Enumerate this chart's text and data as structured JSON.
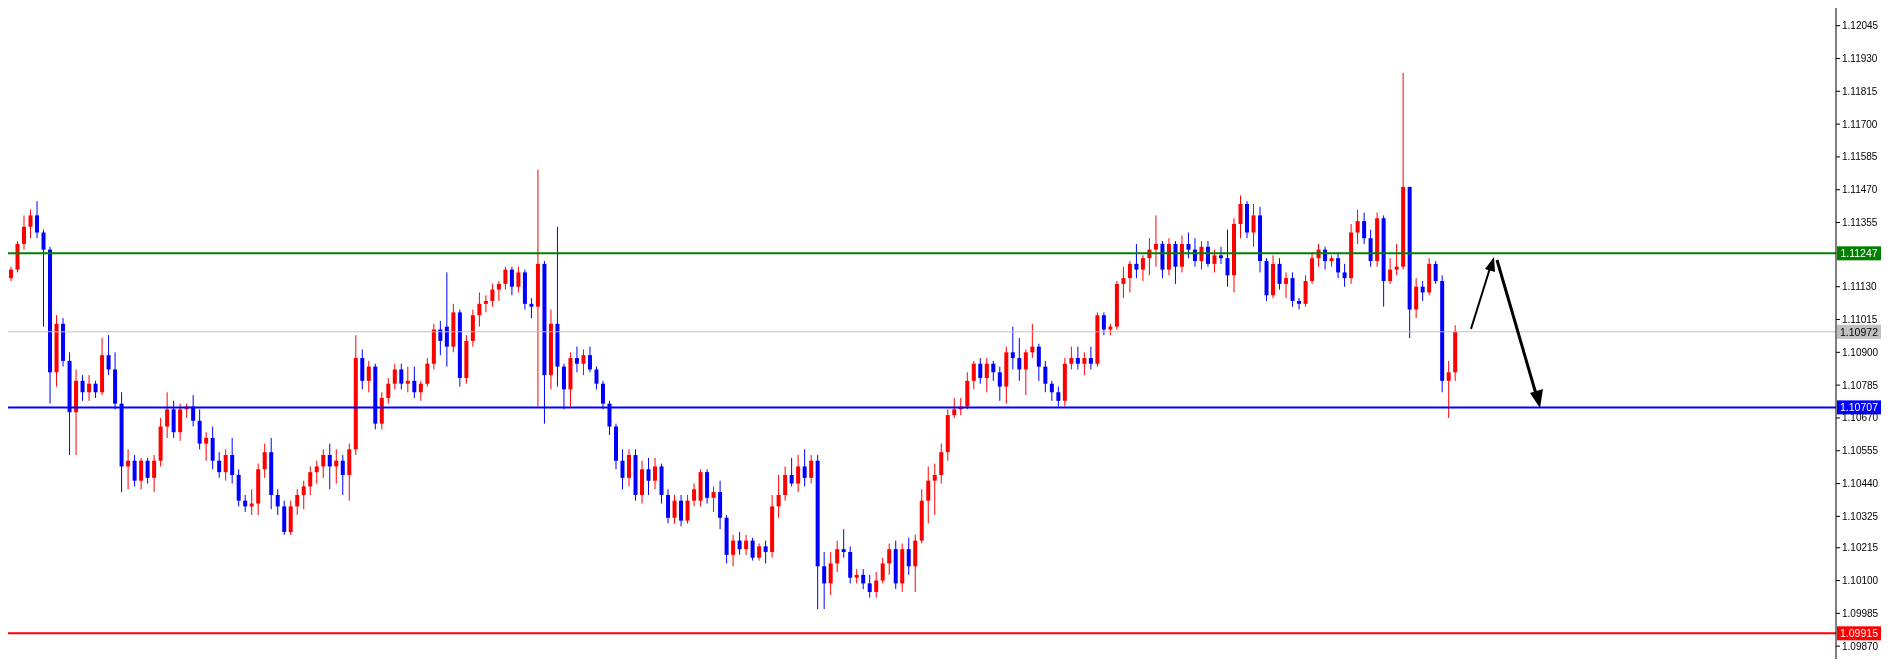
{
  "chart_data": {
    "type": "candlestick",
    "categories": [
      null,
      null,
      null,
      null,
      null,
      null,
      null,
      null,
      null,
      null,
      null,
      null,
      null,
      null,
      null,
      null,
      null,
      null,
      null,
      null,
      null,
      null,
      null,
      null,
      null,
      null,
      null,
      null,
      null,
      null,
      null,
      null,
      null,
      null,
      null,
      null,
      null,
      null,
      null,
      null,
      null,
      null,
      null,
      null,
      null,
      null,
      null,
      null,
      null,
      null,
      null,
      null,
      null,
      null,
      null,
      null,
      null,
      null,
      null,
      null,
      null,
      null,
      null,
      null,
      null,
      null,
      null,
      null,
      null,
      null,
      null,
      null,
      null,
      null,
      null,
      null,
      null,
      null,
      null,
      null,
      null,
      null,
      null,
      null,
      null,
      null,
      null,
      null,
      null,
      null,
      null,
      null,
      null,
      null,
      null,
      null,
      null,
      null,
      null,
      null,
      null,
      null,
      null,
      null,
      null,
      null,
      null,
      null,
      null,
      null,
      null,
      null,
      null,
      null,
      null,
      null,
      null,
      null,
      null,
      null,
      null,
      null,
      null,
      null,
      null,
      null,
      null,
      null,
      null,
      null,
      null,
      null,
      null,
      null,
      null,
      null,
      null,
      null,
      null,
      null,
      null,
      null,
      null,
      null,
      null,
      null,
      null,
      null,
      null,
      null,
      null,
      null,
      null,
      null,
      null,
      null,
      null,
      null,
      null,
      null,
      null,
      null,
      null,
      null,
      null,
      null,
      null,
      null,
      null,
      null,
      null,
      null,
      null,
      null,
      null,
      null,
      null,
      null,
      null,
      null,
      null,
      null,
      null,
      null,
      null,
      null,
      null,
      null,
      null,
      null,
      null,
      null,
      null,
      null,
      null,
      null,
      null,
      null,
      null,
      null,
      null,
      null,
      null,
      null,
      null,
      null,
      null,
      null,
      null,
      null,
      null,
      null,
      null,
      null,
      null,
      null,
      null,
      null,
      null,
      null,
      null,
      null,
      null,
      null,
      null,
      null,
      null,
      null,
      null,
      null,
      null,
      null,
      null,
      null,
      null,
      null,
      null,
      null,
      null,
      null,
      null,
      null,
      null,
      null,
      null,
      null,
      null,
      null,
      null,
      null,
      null,
      null,
      null,
      null,
      null,
      null,
      null,
      null,
      null,
      null,
      null,
      null,
      null,
      null,
      null,
      null,
      null,
      null,
      null,
      null,
      null,
      null,
      null,
      null,
      null,
      null,
      null,
      null,
      null,
      null,
      null
    ],
    "ohlc": [
      [
        1.1116,
        1.112,
        1.1115,
        1.1119
      ],
      [
        1.1119,
        1.1129,
        1.1118,
        1.1128
      ],
      [
        1.1128,
        1.1138,
        1.1126,
        1.1134
      ],
      [
        1.1134,
        1.114,
        1.113,
        1.1138
      ],
      [
        1.1138,
        1.1143,
        1.113,
        1.1132
      ],
      [
        1.1132,
        1.1133,
        1.1099,
        1.1126
      ],
      [
        1.1126,
        1.1127,
        1.1072,
        1.1083
      ],
      [
        1.1083,
        1.1103,
        1.1078,
        1.11
      ],
      [
        1.11,
        1.1102,
        1.1085,
        1.1087
      ],
      [
        1.1087,
        1.109,
        1.1054,
        1.1069
      ],
      [
        1.1069,
        1.1084,
        1.1054,
        1.108
      ],
      [
        1.108,
        1.1082,
        1.1073,
        1.1076
      ],
      [
        1.1076,
        1.1082,
        1.1073,
        1.1079
      ],
      [
        1.1079,
        1.108,
        1.1074,
        1.1076
      ],
      [
        1.1076,
        1.1095,
        1.1075,
        1.1089
      ],
      [
        1.1089,
        1.1096,
        1.1082,
        1.1084
      ],
      [
        1.1084,
        1.109,
        1.107,
        1.1072
      ],
      [
        1.1072,
        1.1076,
        1.1041,
        1.105
      ],
      [
        1.105,
        1.1056,
        1.1042,
        1.1052
      ],
      [
        1.1052,
        1.1054,
        1.1043,
        1.1045
      ],
      [
        1.1045,
        1.1053,
        1.1042,
        1.1052
      ],
      [
        1.1052,
        1.1053,
        1.1044,
        1.1046
      ],
      [
        1.1046,
        1.1054,
        1.1041,
        1.1052
      ],
      [
        1.1052,
        1.1067,
        1.105,
        1.1064
      ],
      [
        1.1064,
        1.1076,
        1.106,
        1.107
      ],
      [
        1.107,
        1.1073,
        1.106,
        1.1062
      ],
      [
        1.1062,
        1.1072,
        1.1059,
        1.107
      ],
      [
        1.107,
        1.1072,
        1.1067,
        1.1071
      ],
      [
        1.1071,
        1.1075,
        1.1064,
        1.1066
      ],
      [
        1.1066,
        1.107,
        1.1056,
        1.1058
      ],
      [
        1.1058,
        1.1062,
        1.1052,
        1.106
      ],
      [
        1.106,
        1.1064,
        1.1049,
        1.1052
      ],
      [
        1.1052,
        1.1055,
        1.1046,
        1.1048
      ],
      [
        1.1048,
        1.1056,
        1.1045,
        1.1054
      ],
      [
        1.1054,
        1.106,
        1.1044,
        1.1047
      ],
      [
        1.1047,
        1.1049,
        1.1036,
        1.1038
      ],
      [
        1.1038,
        1.104,
        1.1034,
        1.1036
      ],
      [
        1.1036,
        1.1042,
        1.1033,
        1.1037
      ],
      [
        1.1037,
        1.1051,
        1.1033,
        1.1049
      ],
      [
        1.1049,
        1.1058,
        1.1046,
        1.1055
      ],
      [
        1.1055,
        1.106,
        1.1035,
        1.104
      ],
      [
        1.104,
        1.1042,
        1.1033,
        1.1036
      ],
      [
        1.1036,
        1.1038,
        1.1026,
        1.1027
      ],
      [
        1.1027,
        1.1038,
        1.1026,
        1.1036
      ],
      [
        1.1036,
        1.1042,
        1.1033,
        1.104
      ],
      [
        1.104,
        1.1045,
        1.1035,
        1.1043
      ],
      [
        1.1043,
        1.105,
        1.104,
        1.1048
      ],
      [
        1.1048,
        1.1052,
        1.1044,
        1.105
      ],
      [
        1.105,
        1.1056,
        1.1046,
        1.1054
      ],
      [
        1.1054,
        1.1058,
        1.1042,
        1.105
      ],
      [
        1.105,
        1.1056,
        1.1044,
        1.1052
      ],
      [
        1.1052,
        1.1054,
        1.104,
        1.1047
      ],
      [
        1.1047,
        1.1058,
        1.1038,
        1.1056
      ],
      [
        1.1056,
        1.1096,
        1.1054,
        1.1088
      ],
      [
        1.1088,
        1.1091,
        1.1077,
        1.108
      ],
      [
        1.108,
        1.1087,
        1.1076,
        1.1085
      ],
      [
        1.1085,
        1.1086,
        1.1063,
        1.1065
      ],
      [
        1.1065,
        1.1076,
        1.1063,
        1.1074
      ],
      [
        1.1074,
        1.1081,
        1.1072,
        1.1079
      ],
      [
        1.1079,
        1.1086,
        1.1077,
        1.1084
      ],
      [
        1.1084,
        1.1086,
        1.1077,
        1.1079
      ],
      [
        1.1079,
        1.1085,
        1.1076,
        1.108
      ],
      [
        1.108,
        1.1085,
        1.1074,
        1.1076
      ],
      [
        1.1076,
        1.108,
        1.1073,
        1.1079
      ],
      [
        1.1079,
        1.1088,
        1.1078,
        1.1086
      ],
      [
        1.1086,
        1.11,
        1.1084,
        1.1098
      ],
      [
        1.1098,
        1.1101,
        1.1089,
        1.1094
      ],
      [
        1.1099,
        1.1118,
        1.1085,
        1.1092
      ],
      [
        1.1092,
        1.1107,
        1.109,
        1.1104
      ],
      [
        1.1104,
        1.1105,
        1.1078,
        1.1081
      ],
      [
        1.1081,
        1.1096,
        1.1079,
        1.1094
      ],
      [
        1.1094,
        1.1105,
        1.1092,
        1.1103
      ],
      [
        1.1103,
        1.1111,
        1.1099,
        1.1107
      ],
      [
        1.1107,
        1.111,
        1.1104,
        1.1108
      ],
      [
        1.1108,
        1.1114,
        1.1106,
        1.1112
      ],
      [
        1.1112,
        1.1115,
        1.1108,
        1.1114
      ],
      [
        1.1114,
        1.112,
        1.1112,
        1.1119
      ],
      [
        1.1119,
        1.112,
        1.111,
        1.1113
      ],
      [
        1.1113,
        1.112,
        1.1111,
        1.1118
      ],
      [
        1.1118,
        1.1119,
        1.1105,
        1.1107
      ],
      [
        1.1107,
        1.1109,
        1.1102,
        1.1106
      ],
      [
        1.1106,
        1.1154,
        1.1071,
        1.1121
      ],
      [
        1.1121,
        1.1122,
        1.1065,
        1.1082
      ],
      [
        1.1082,
        1.1105,
        1.1077,
        1.11
      ],
      [
        1.11,
        1.1134,
        1.1078,
        1.1085
      ],
      [
        1.1085,
        1.1086,
        1.107,
        1.1077
      ],
      [
        1.1077,
        1.109,
        1.1071,
        1.1088
      ],
      [
        1.1088,
        1.1092,
        1.1083,
        1.1086
      ],
      [
        1.1086,
        1.1091,
        1.1082,
        1.1089
      ],
      [
        1.1089,
        1.1092,
        1.1083,
        1.1084
      ],
      [
        1.1084,
        1.1085,
        1.1077,
        1.1079
      ],
      [
        1.1079,
        1.108,
        1.107,
        1.1072
      ],
      [
        1.1072,
        1.1073,
        1.1061,
        1.1064
      ],
      [
        1.1064,
        1.1065,
        1.1049,
        1.1052
      ],
      [
        1.1052,
        1.1056,
        1.1042,
        1.1046
      ],
      [
        1.1046,
        1.1056,
        1.1043,
        1.1054
      ],
      [
        1.1054,
        1.1056,
        1.1038,
        1.104
      ],
      [
        1.104,
        1.1052,
        1.1037,
        1.1049
      ],
      [
        1.1049,
        1.1053,
        1.104,
        1.1045
      ],
      [
        1.1045,
        1.1053,
        1.1042,
        1.105
      ],
      [
        1.105,
        1.1051,
        1.1037,
        1.104
      ],
      [
        1.104,
        1.1042,
        1.103,
        1.1032
      ],
      [
        1.1032,
        1.104,
        1.103,
        1.1038
      ],
      [
        1.1038,
        1.104,
        1.1029,
        1.1031
      ],
      [
        1.1031,
        1.104,
        1.103,
        1.1038
      ],
      [
        1.1038,
        1.1044,
        1.1036,
        1.1042
      ],
      [
        1.1038,
        1.1049,
        1.1036,
        1.1048
      ],
      [
        1.1048,
        1.1049,
        1.1037,
        1.1039
      ],
      [
        1.1039,
        1.1043,
        1.1034,
        1.1041
      ],
      [
        1.1041,
        1.1045,
        1.1028,
        1.1032
      ],
      [
        1.1032,
        1.1033,
        1.1016,
        1.1019
      ],
      [
        1.1019,
        1.1026,
        1.1015,
        1.1024
      ],
      [
        1.1024,
        1.1027,
        1.1019,
        1.1021
      ],
      [
        1.1021,
        1.1026,
        1.1019,
        1.1024
      ],
      [
        1.1024,
        1.1025,
        1.1017,
        1.1018
      ],
      [
        1.1018,
        1.1023,
        1.1017,
        1.1022
      ],
      [
        1.1022,
        1.1024,
        1.1016,
        1.102
      ],
      [
        1.102,
        1.104,
        1.1018,
        1.1036
      ],
      [
        1.1036,
        1.1047,
        1.1032,
        1.104
      ],
      [
        1.104,
        1.105,
        1.1038,
        1.1047
      ],
      [
        1.1047,
        1.1053,
        1.1043,
        1.1044
      ],
      [
        1.1044,
        1.1054,
        1.1041,
        1.105
      ],
      [
        1.105,
        1.1056,
        1.1043,
        1.1046
      ],
      [
        1.1046,
        1.1054,
        1.1044,
        1.1052
      ],
      [
        1.1052,
        1.1054,
        1.1,
        1.1015
      ],
      [
        1.1015,
        1.102,
        1.1,
        1.1009
      ],
      [
        1.1009,
        1.102,
        1.1005,
        1.1016
      ],
      [
        1.1016,
        1.1024,
        1.1013,
        1.1021
      ],
      [
        1.1021,
        1.1028,
        1.1018,
        1.102
      ],
      [
        1.102,
        1.1022,
        1.1009,
        1.1011
      ],
      [
        1.1011,
        1.1014,
        1.1009,
        1.1012
      ],
      [
        1.1012,
        1.1014,
        1.1007,
        1.1009
      ],
      [
        1.1009,
        1.1012,
        1.1004,
        1.1006
      ],
      [
        1.1006,
        1.1013,
        1.1004,
        1.101
      ],
      [
        1.101,
        1.1018,
        1.1009,
        1.1016
      ],
      [
        1.1016,
        1.1023,
        1.1012,
        1.1021
      ],
      [
        1.1021,
        1.1024,
        1.1007,
        1.1009
      ],
      [
        1.1009,
        1.1023,
        1.1006,
        1.1021
      ],
      [
        1.1021,
        1.1025,
        1.1012,
        1.1015
      ],
      [
        1.1015,
        1.1026,
        1.1006,
        1.1024
      ],
      [
        1.1024,
        1.1042,
        1.1023,
        1.1038
      ],
      [
        1.1038,
        1.105,
        1.103,
        1.1045
      ],
      [
        1.1045,
        1.1051,
        1.1033,
        1.1047
      ],
      [
        1.1047,
        1.1058,
        1.1044,
        1.1055
      ],
      [
        1.1055,
        1.107,
        1.1052,
        1.1068
      ],
      [
        1.1068,
        1.1074,
        1.1067,
        1.107
      ],
      [
        1.107,
        1.1074,
        1.1068,
        1.1071
      ],
      [
        1.1071,
        1.1083,
        1.107,
        1.108
      ],
      [
        1.108,
        1.1087,
        1.1077,
        1.1086
      ],
      [
        1.1086,
        1.1088,
        1.1079,
        1.1081
      ],
      [
        1.1081,
        1.1088,
        1.1076,
        1.1086
      ],
      [
        1.1086,
        1.1087,
        1.108,
        1.1083
      ],
      [
        1.1083,
        1.1085,
        1.1073,
        1.1078
      ],
      [
        1.1078,
        1.1092,
        1.1072,
        1.109
      ],
      [
        1.109,
        1.1099,
        1.1084,
        1.1088
      ],
      [
        1.1088,
        1.1095,
        1.108,
        1.1084
      ],
      [
        1.1084,
        1.1091,
        1.1075,
        1.109
      ],
      [
        1.109,
        1.11,
        1.1088,
        1.1092
      ],
      [
        1.1092,
        1.1093,
        1.108,
        1.1085
      ],
      [
        1.1085,
        1.1087,
        1.1076,
        1.1079
      ],
      [
        1.1079,
        1.108,
        1.1073,
        1.1076
      ],
      [
        1.1076,
        1.1078,
        1.1071,
        1.1073
      ],
      [
        1.1073,
        1.1088,
        1.1071,
        1.1086
      ],
      [
        1.1086,
        1.1092,
        1.1084,
        1.1088
      ],
      [
        1.1088,
        1.1092,
        1.1084,
        1.1086
      ],
      [
        1.1086,
        1.109,
        1.1082,
        1.1088
      ],
      [
        1.1088,
        1.1092,
        1.1084,
        1.1086
      ],
      [
        1.1086,
        1.1104,
        1.1085,
        1.1103
      ],
      [
        1.1103,
        1.1104,
        1.1096,
        1.1098
      ],
      [
        1.1098,
        1.11,
        1.1096,
        1.1099
      ],
      [
        1.1099,
        1.1115,
        1.1098,
        1.1114
      ],
      [
        1.1114,
        1.112,
        1.1109,
        1.1116
      ],
      [
        1.1116,
        1.1122,
        1.1111,
        1.1121
      ],
      [
        1.1121,
        1.1128,
        1.1116,
        1.1119
      ],
      [
        1.1119,
        1.1124,
        1.1115,
        1.1123
      ],
      [
        1.1123,
        1.113,
        1.1117,
        1.1126
      ],
      [
        1.1126,
        1.1138,
        1.112,
        1.1128
      ],
      [
        1.1128,
        1.1129,
        1.1116,
        1.1119
      ],
      [
        1.1119,
        1.113,
        1.1117,
        1.1128
      ],
      [
        1.1128,
        1.1129,
        1.1114,
        1.112
      ],
      [
        1.112,
        1.1131,
        1.1118,
        1.1128
      ],
      [
        1.1128,
        1.1132,
        1.1123,
        1.1126
      ],
      [
        1.1126,
        1.113,
        1.112,
        1.1122
      ],
      [
        1.1122,
        1.1129,
        1.1119,
        1.1127
      ],
      [
        1.1127,
        1.1129,
        1.112,
        1.1121
      ],
      [
        1.1121,
        1.1126,
        1.1118,
        1.1124
      ],
      [
        1.1124,
        1.1127,
        1.1121,
        1.1123
      ],
      [
        1.1123,
        1.1133,
        1.1113,
        1.1117
      ],
      [
        1.1117,
        1.1137,
        1.1111,
        1.1135
      ],
      [
        1.1135,
        1.1145,
        1.113,
        1.1142
      ],
      [
        1.1142,
        1.1143,
        1.113,
        1.1132
      ],
      [
        1.1132,
        1.1142,
        1.1127,
        1.1138
      ],
      [
        1.1138,
        1.1141,
        1.1118,
        1.1122
      ],
      [
        1.1122,
        1.1123,
        1.1108,
        1.111
      ],
      [
        1.111,
        1.1124,
        1.1109,
        1.1121
      ],
      [
        1.1121,
        1.1123,
        1.1112,
        1.1114
      ],
      [
        1.1114,
        1.1118,
        1.1109,
        1.1116
      ],
      [
        1.1116,
        1.1118,
        1.1106,
        1.1108
      ],
      [
        1.1108,
        1.1109,
        1.1105,
        1.1107
      ],
      [
        1.1107,
        1.1117,
        1.1106,
        1.1115
      ],
      [
        1.1115,
        1.1125,
        1.1114,
        1.1123
      ],
      [
        1.1123,
        1.1128,
        1.112,
        1.1126
      ],
      [
        1.1126,
        1.1127,
        1.1119,
        1.1122
      ],
      [
        1.1122,
        1.1124,
        1.112,
        1.1123
      ],
      [
        1.1123,
        1.1125,
        1.1116,
        1.1118
      ],
      [
        1.1118,
        1.1121,
        1.1113,
        1.1116
      ],
      [
        1.1116,
        1.1135,
        1.1114,
        1.1132
      ],
      [
        1.1132,
        1.114,
        1.1128,
        1.1136
      ],
      [
        1.1136,
        1.1139,
        1.1128,
        1.113
      ],
      [
        1.113,
        1.1133,
        1.112,
        1.1122
      ],
      [
        1.1122,
        1.1139,
        1.112,
        1.1137
      ],
      [
        1.1137,
        1.1138,
        1.1106,
        1.1115
      ],
      [
        1.1115,
        1.1123,
        1.1114,
        1.1119
      ],
      [
        1.1119,
        1.1128,
        1.1117,
        1.112
      ],
      [
        1.112,
        1.1188,
        1.1119,
        1.1148
      ],
      [
        1.1148,
        1.1148,
        1.1095,
        1.1105
      ],
      [
        1.1105,
        1.1116,
        1.1102,
        1.1113
      ],
      [
        1.1113,
        1.1115,
        1.1108,
        1.1111
      ],
      [
        1.1111,
        1.1123,
        1.111,
        1.1121
      ],
      [
        1.1121,
        1.1122,
        1.1114,
        1.1115
      ],
      [
        1.1115,
        1.1117,
        1.1076,
        1.108
      ],
      [
        1.108,
        1.1087,
        1.1067,
        1.1083
      ],
      [
        1.1083,
        1.10995,
        1.108,
        1.10972
      ],
      null,
      null,
      null,
      null,
      null,
      null,
      null,
      null,
      null,
      null,
      null,
      null,
      null,
      null,
      null,
      null,
      null,
      null,
      null,
      null,
      null,
      null,
      null,
      null,
      null,
      null,
      null,
      null,
      null,
      null,
      null,
      null,
      null,
      null,
      null,
      null,
      null,
      null,
      null,
      null,
      null,
      null,
      null,
      null,
      null,
      null,
      null,
      null,
      null,
      null,
      null,
      null,
      null,
      null,
      null,
      null,
      null,
      null
    ],
    "colors": [
      "#ff0000",
      "#ff0000",
      "#ff0000",
      "#ff0000",
      "#0000ff",
      "#0000ff",
      "#0000ff",
      "#ff0000",
      "#0000ff",
      "#0000ff",
      "#ff0000",
      "#0000ff",
      "#ff0000",
      "#0000ff",
      "#ff0000",
      "#0000ff",
      "#0000ff",
      "#0000ff",
      "#ff0000",
      "#0000ff",
      "#ff0000",
      "#0000ff",
      "#ff0000",
      "#ff0000",
      "#ff0000",
      "#0000ff",
      "#ff0000",
      "#ff0000",
      "#0000ff",
      "#0000ff",
      "#ff0000",
      "#0000ff",
      "#0000ff",
      "#ff0000",
      "#0000ff",
      "#0000ff",
      "#0000ff",
      "#ff0000",
      "#ff0000",
      "#ff0000",
      "#0000ff",
      "#0000ff",
      "#0000ff",
      "#ff0000",
      "#ff0000",
      "#ff0000",
      "#ff0000",
      "#ff0000",
      "#ff0000",
      "#0000ff",
      "#ff0000",
      "#0000ff",
      "#ff0000",
      "#ff0000",
      "#0000ff",
      "#ff0000",
      "#0000ff",
      "#ff0000",
      "#ff0000",
      "#ff0000",
      "#0000ff",
      "#ff0000",
      "#0000ff",
      "#ff0000",
      "#ff0000",
      "#ff0000",
      "#0000ff",
      "#0000ff",
      "#ff0000",
      "#0000ff",
      "#ff0000",
      "#ff0000",
      "#ff0000",
      "#ff0000",
      "#ff0000",
      "#ff0000",
      "#ff0000",
      "#0000ff",
      "#ff0000",
      "#0000ff",
      "#0000ff",
      "#ff0000",
      "#0000ff",
      "#ff0000",
      "#0000ff",
      "#0000ff",
      "#ff0000",
      "#0000ff",
      "#ff0000",
      "#0000ff",
      "#0000ff",
      "#0000ff",
      "#0000ff",
      "#0000ff",
      "#0000ff",
      "#ff0000",
      "#0000ff",
      "#ff0000",
      "#0000ff",
      "#ff0000",
      "#0000ff",
      "#0000ff",
      "#ff0000",
      "#0000ff",
      "#ff0000",
      "#ff0000",
      "#ff0000",
      "#0000ff",
      "#ff0000",
      "#0000ff",
      "#0000ff",
      "#ff0000",
      "#0000ff",
      "#ff0000",
      "#0000ff",
      "#ff0000",
      "#0000ff",
      "#ff0000",
      "#ff0000",
      "#ff0000",
      "#0000ff",
      "#ff0000",
      "#0000ff",
      "#ff0000",
      "#0000ff",
      "#0000ff",
      "#ff0000",
      "#ff0000",
      "#0000ff",
      "#0000ff",
      "#ff0000",
      "#0000ff",
      "#0000ff",
      "#ff0000",
      "#ff0000",
      "#ff0000",
      "#0000ff",
      "#ff0000",
      "#0000ff",
      "#ff0000",
      "#ff0000",
      "#ff0000",
      "#ff0000",
      "#ff0000",
      "#ff0000",
      "#ff0000",
      "#ff0000",
      "#ff0000",
      "#ff0000",
      "#0000ff",
      "#ff0000",
      "#0000ff",
      "#0000ff",
      "#ff0000",
      "#0000ff",
      "#0000ff",
      "#ff0000",
      "#ff0000",
      "#0000ff",
      "#0000ff",
      "#0000ff",
      "#0000ff",
      "#ff0000",
      "#ff0000",
      "#0000ff",
      "#ff0000",
      "#0000ff",
      "#ff0000",
      "#0000ff",
      "#ff0000",
      "#ff0000",
      "#ff0000",
      "#ff0000",
      "#0000ff",
      "#ff0000",
      "#ff0000",
      "#ff0000",
      "#0000ff",
      "#ff0000",
      "#0000ff",
      "#ff0000",
      "#0000ff",
      "#0000ff",
      "#ff0000",
      "#0000ff",
      "#ff0000",
      "#0000ff",
      "#0000ff",
      "#ff0000",
      "#ff0000",
      "#0000ff",
      "#ff0000",
      "#0000ff",
      "#0000ff",
      "#ff0000",
      "#0000ff",
      "#ff0000",
      "#0000ff",
      "#0000ff",
      "#ff0000",
      "#ff0000",
      "#ff0000",
      "#0000ff",
      "#ff0000",
      "#0000ff",
      "#0000ff",
      "#ff0000",
      "#ff0000",
      "#0000ff",
      "#0000ff",
      "#ff0000",
      "#0000ff",
      "#ff0000",
      "#ff0000",
      "#ff0000",
      "#0000ff",
      "#ff0000",
      "#0000ff",
      "#ff0000",
      "#0000ff",
      "#0000ff",
      "#ff0000",
      "#ff0000",
      null,
      null,
      null,
      null,
      null,
      null,
      null,
      null,
      null,
      null,
      null,
      null,
      null,
      null,
      null,
      null,
      null,
      null,
      null,
      null,
      null,
      null,
      null,
      null,
      null,
      null,
      null,
      null,
      null,
      null,
      null,
      null,
      null,
      null,
      null,
      null,
      null,
      null,
      null,
      null,
      null,
      null,
      null,
      null,
      null,
      null,
      null,
      null,
      null,
      null,
      null,
      null,
      null,
      null,
      null,
      null,
      null,
      null
    ],
    "ylim": [
      1.09825,
      1.12107
    ],
    "yticks": [
      {
        "value": 1.0987,
        "label": "1.09870"
      },
      1.09985,
      {
        "value": 1.101,
        "label": "1.10100"
      },
      1.10215,
      1.10325,
      {
        "value": 1.1044,
        "label": "1.10440"
      },
      1.10555,
      {
        "value": 1.1067,
        "label": "1.10670"
      },
      1.10785,
      {
        "value": 1.109,
        "label": "1.10900"
      },
      1.11015,
      {
        "value": 1.1113,
        "label": "1.11130"
      },
      1.11355,
      {
        "value": 1.1147,
        "label": "1.11470"
      },
      1.11585,
      {
        "value": 1.117,
        "label": "1.11700"
      },
      1.11815,
      {
        "value": 1.1193,
        "label": "1.11930"
      },
      1.12045
    ],
    "ref_lines": [
      {
        "axis": "y",
        "value": 1.11247,
        "label": "1.11247",
        "color": "#008000"
      },
      {
        "axis": "y",
        "value": 1.10972,
        "label": "1.10972",
        "color": "#c0c0c0"
      },
      {
        "axis": "y",
        "value": 1.10707,
        "label": "1.10707",
        "color": "#0000ff"
      },
      {
        "axis": "y",
        "value": 1.09915,
        "label": "1.09915",
        "color": "#ff0000"
      }
    ],
    "tick_labels": "y"
  }
}
